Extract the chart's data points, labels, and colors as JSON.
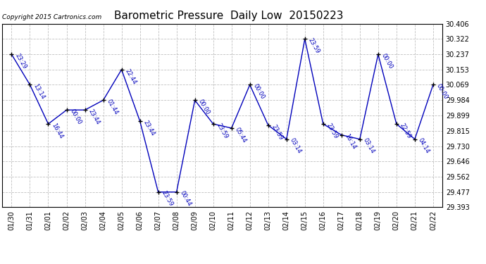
{
  "title": "Barometric Pressure  Daily Low  20150223",
  "copyright": "Copyright 2015 Cartronics.com",
  "x_labels": [
    "01/30",
    "01/31",
    "02/01",
    "02/02",
    "02/03",
    "02/04",
    "02/05",
    "02/06",
    "02/07",
    "02/08",
    "02/09",
    "02/10",
    "02/11",
    "02/12",
    "02/13",
    "02/14",
    "02/15",
    "02/16",
    "02/17",
    "02/18",
    "02/19",
    "02/20",
    "02/21",
    "02/22"
  ],
  "dates": [
    0,
    1,
    2,
    3,
    4,
    5,
    6,
    7,
    8,
    9,
    10,
    11,
    12,
    13,
    14,
    15,
    16,
    17,
    18,
    19,
    20,
    21,
    22,
    23
  ],
  "values": [
    30.237,
    30.069,
    29.853,
    29.93,
    29.93,
    29.984,
    30.153,
    29.869,
    29.477,
    29.477,
    29.984,
    29.853,
    29.83,
    30.069,
    29.846,
    29.769,
    30.322,
    29.853,
    29.792,
    29.769,
    30.237,
    29.853,
    29.769,
    30.069
  ],
  "point_labels": [
    "23:29",
    "13:14",
    "16:44",
    "00:00",
    "23:44",
    "01:44",
    "22:44",
    "23:44",
    "23:59",
    "00:44",
    "00:00",
    "23:59",
    "05:44",
    "00:00",
    "23:59",
    "03:14",
    "23:59",
    "23:59",
    "16:14",
    "03:14",
    "00:00",
    "22:59",
    "04:14",
    "00:00"
  ],
  "line_color": "#0000bb",
  "marker_color": "#000000",
  "bg_color": "#ffffff",
  "grid_color": "#b0b0b0",
  "ylim_min": 29.393,
  "ylim_max": 30.406,
  "yticks": [
    29.393,
    29.477,
    29.562,
    29.646,
    29.73,
    29.815,
    29.899,
    29.984,
    30.069,
    30.153,
    30.237,
    30.322,
    30.406
  ]
}
